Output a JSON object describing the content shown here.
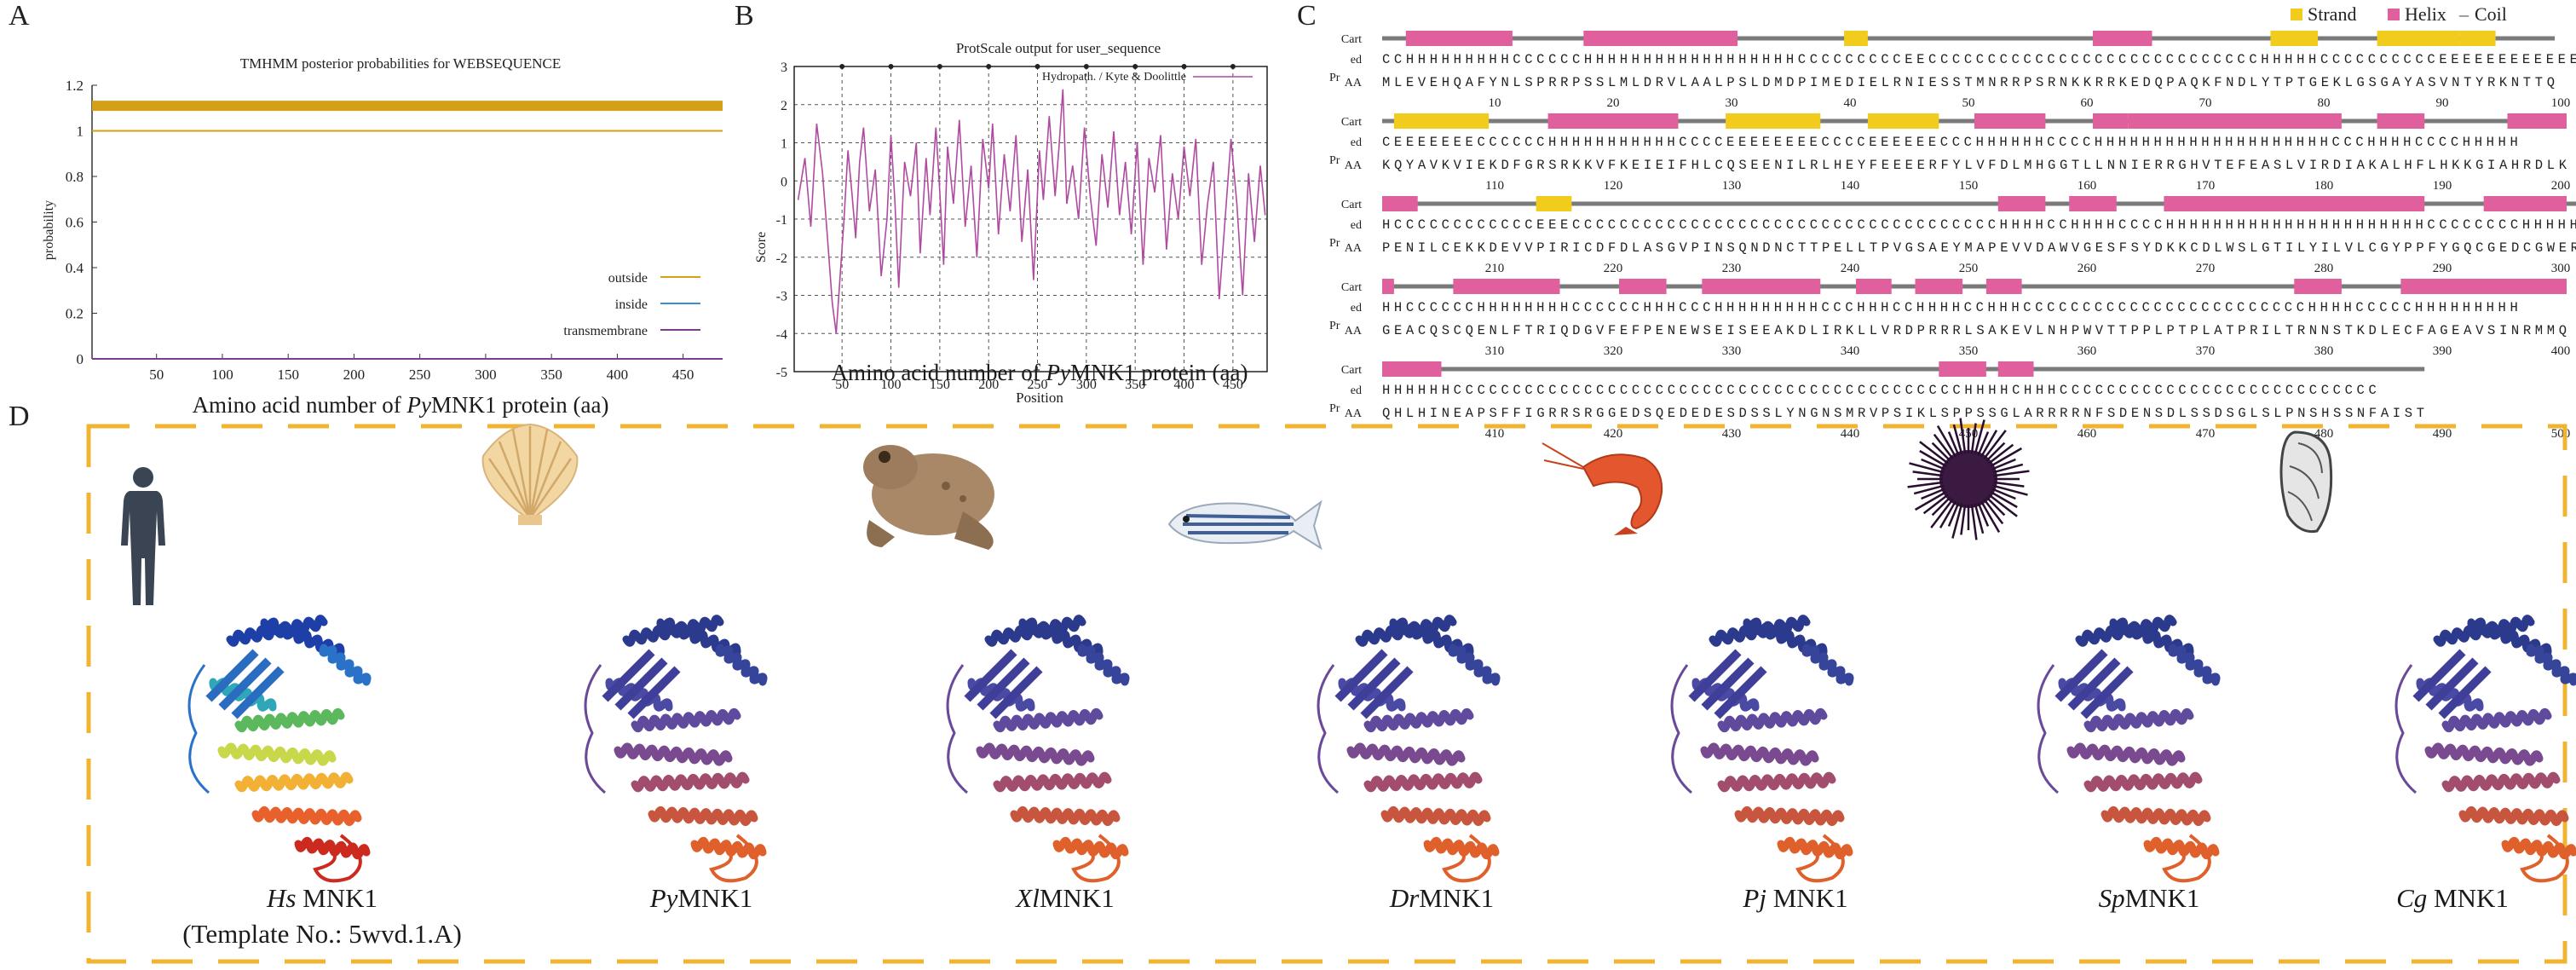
{
  "panels": {
    "a": "A",
    "b": "B",
    "c": "C",
    "d": "D"
  },
  "colors": {
    "outside": "#d4a017",
    "inside": "#3a8fd1",
    "transmembrane": "#7a3c8c",
    "hydro": "#b04aa0",
    "strand": "#f2cc1c",
    "helix": "#e0609e",
    "coil": "#7a7a7a",
    "frame": "#f0b431"
  },
  "chart_data": [
    {
      "type": "line",
      "id": "A",
      "title": "TMHMM posterior probabilities for WEBSEQUENCE",
      "xlabel": "Amino acid number of PyMNK1 protein (aa)",
      "ylabel": "probability",
      "xlim": [
        1,
        480
      ],
      "ylim": [
        0,
        1.2
      ],
      "xticks": [
        50,
        100,
        150,
        200,
        250,
        300,
        350,
        400,
        450
      ],
      "yticks": [
        "0",
        "0.2",
        "0.4",
        "0.6",
        "0.8",
        "1",
        "1.2"
      ],
      "legend_position": "bottom-right",
      "series": [
        {
          "name": "outside",
          "values": [
            1.0,
            1.0
          ]
        },
        {
          "name": "inside",
          "values": [
            0.0,
            0.0
          ]
        },
        {
          "name": "transmembrane",
          "values": [
            0.0,
            0.0
          ]
        }
      ],
      "band": {
        "name": "outside-bar",
        "value": 1.11
      }
    },
    {
      "type": "line",
      "id": "B",
      "title": "ProtScale output for user_sequence",
      "xlabel": "Position",
      "ylabel": "Score",
      "caption": "Amino acid number of PyMNK1 protein (aa)",
      "xlim": [
        1,
        485
      ],
      "ylim": [
        -5,
        3
      ],
      "xticks": [
        50,
        100,
        150,
        200,
        250,
        300,
        350,
        400,
        450
      ],
      "yticks": [
        -5,
        -4,
        -3,
        -2,
        -1,
        0,
        1,
        2,
        3
      ],
      "legend": "Hydropath. / Kyte & Doolittle",
      "legend_position": "top-right",
      "series": [
        {
          "name": "Hydropath. / Kyte & Doolittle",
          "x": [
            5,
            12,
            18,
            24,
            30,
            36,
            40,
            44,
            48,
            52,
            56,
            60,
            64,
            68,
            72,
            78,
            84,
            90,
            96,
            100,
            104,
            108,
            114,
            120,
            126,
            130,
            136,
            140,
            146,
            150,
            154,
            158,
            164,
            170,
            176,
            182,
            188,
            194,
            200,
            204,
            210,
            216,
            222,
            228,
            234,
            240,
            246,
            252,
            256,
            262,
            268,
            272,
            276,
            280,
            286,
            292,
            298,
            304,
            310,
            316,
            322,
            328,
            334,
            340,
            346,
            352,
            358,
            364,
            370,
            376,
            382,
            388,
            394,
            400,
            406,
            412,
            418,
            424,
            430,
            436,
            442,
            448,
            454,
            460,
            466,
            472,
            478,
            483
          ],
          "values": [
            -0.5,
            0.6,
            -1.2,
            1.5,
            0.2,
            -1.8,
            -3.2,
            -4.0,
            -2.5,
            -1.0,
            0.8,
            -0.3,
            -1.5,
            0.5,
            1.4,
            -0.8,
            0.3,
            -2.5,
            -1.0,
            1.2,
            -0.5,
            -2.8,
            0.5,
            -0.4,
            1.0,
            -1.9,
            0.6,
            -0.9,
            1.4,
            -0.3,
            -2.2,
            0.9,
            -0.6,
            1.6,
            -1.2,
            0.4,
            -2.0,
            1.1,
            -0.2,
            1.5,
            -1.4,
            0.7,
            -0.8,
            1.2,
            -1.6,
            0.3,
            -2.6,
            0.8,
            -0.5,
            1.7,
            -0.4,
            0.9,
            2.4,
            -0.6,
            0.4,
            -1.0,
            1.4,
            -0.4,
            -1.7,
            0.7,
            -0.7,
            1.3,
            -0.9,
            0.5,
            -1.4,
            1.0,
            -2.2,
            0.6,
            -0.3,
            1.2,
            -1.8,
            0.2,
            -1.0,
            0.9,
            -0.4,
            1.1,
            -2.2,
            -0.6,
            0.5,
            -3.1,
            -1.0,
            1.1,
            -0.6,
            -3.0,
            0.2,
            -1.6,
            0.4,
            -0.9
          ]
        }
      ]
    }
  ],
  "secondary": {
    "legend": {
      "strand": "Strand",
      "helix": "Helix",
      "coil": "Coil",
      "coil_mark": "–"
    },
    "row_label_cart": "Cart",
    "row_label_ed": "ed",
    "row_label_pr": "Pr",
    "row_label_aa": "AA",
    "blocks": [
      {
        "ss": "CCHHHHHHHHHCCCCCCHHHHHHHHHHHHHHHHHHCCCCCCCCCEECCCCCCCCCCCCCCCCCCCCCCCCCCCCHHHHHCCCCCCCCCCEEEEEEEEEEEEEC",
        "aa": "MLEVEHQAFYNLSPRRPSSLMLDRVLAALPSLDMDPIMEDIELRNIESSTMNRRPSRNKKRRKEDQPAQKFNDLYTPTGEKLGSGAYASVNTYRKNTTQ",
        "nums": [
          "10",
          "20",
          "30",
          "40",
          "50",
          "60",
          "70",
          "80",
          "90",
          "100"
        ],
        "segments": [
          {
            "type": "helix",
            "start": 3,
            "end": 11
          },
          {
            "type": "helix",
            "start": 18,
            "end": 30
          },
          {
            "type": "strand",
            "start": 40,
            "end": 41
          },
          {
            "type": "helix",
            "start": 61,
            "end": 65
          },
          {
            "type": "strand",
            "start": 76,
            "end": 79
          },
          {
            "type": "strand",
            "start": 85,
            "end": 91
          },
          {
            "type": "strand",
            "start": 92,
            "end": 94
          }
        ]
      },
      {
        "ss": "CEEEEEEECCCCCCHHHHHHHHHHHCCCCEEEEEEEECCCCEEEEEECCCHHHHHHCCCCHHHHHHHHHHHHHHHHHHHHCCCHHHHCCCCHHHHH",
        "aa": "KQYAVKVIEKDFGRSRKKVFKEIEIFHLCQSEENILRLHEYFEEEERFYLVFDLMHGGTLLNNIERRGHVTEFEASLVIRDIAKALHFLHKKGIAHRDLK",
        "nums": [
          "110",
          "120",
          "130",
          "140",
          "150",
          "160",
          "170",
          "180",
          "190",
          "200"
        ],
        "segments": [
          {
            "type": "strand",
            "start": 2,
            "end": 9
          },
          {
            "type": "helix",
            "start": 15,
            "end": 25
          },
          {
            "type": "strand",
            "start": 30,
            "end": 37
          },
          {
            "type": "strand",
            "start": 42,
            "end": 47
          },
          {
            "type": "helix",
            "start": 51,
            "end": 56
          },
          {
            "type": "helix",
            "start": 61,
            "end": 63
          },
          {
            "type": "helix",
            "start": 64,
            "end": 81
          },
          {
            "type": "helix",
            "start": 85,
            "end": 88
          },
          {
            "type": "helix",
            "start": 96,
            "end": 100
          }
        ]
      },
      {
        "ss": "HCCCCCCCCCCCCEEECCCCCCCCCCCCCCCCCCCCCCCCCCCCCCCCCCCCHHHHCCHHHHCCCCHHHHHHHHHHHHHHHHHHHHHHCCCCCCCCHHHHHHH",
        "aa": "PENILCEKKDEVVPIRICDFDLASGVPINSQNDNCTTPELLTPVGSAEYMAPEVVDAWVGESFSYDKKCDLWSLGTILYILVLCGYPPFYGQCGEDCGWER",
        "nums": [
          "210",
          "220",
          "230",
          "240",
          "250",
          "260",
          "270",
          "280",
          "290",
          "300"
        ],
        "segments": [
          {
            "type": "helix",
            "start": 1,
            "end": 3
          },
          {
            "type": "strand",
            "start": 14,
            "end": 16
          },
          {
            "type": "helix",
            "start": 53,
            "end": 56
          },
          {
            "type": "helix",
            "start": 59,
            "end": 62
          },
          {
            "type": "helix",
            "start": 67,
            "end": 88
          },
          {
            "type": "helix",
            "start": 94,
            "end": 100
          }
        ]
      },
      {
        "ss": "HHCCCCCCHHHHHHHHCCCCCCHHHCCCHHHHHHHHHCCCHHHCCHHHHCCHHHCCCCCCCCCCCCCCCCCCCCCCCCHHHHCCCCCHHHHHHHHH",
        "aa": "GEACQSCQENLFTRIQDGVFEFPENEWSEISEEAKDLIRKLLVRDPRRRLSAKEVLNHPWVTTPPLPTPLATPRILTRNNSTKDLECFAGEAVSINRMMQ",
        "nums": [
          "310",
          "320",
          "330",
          "340",
          "350",
          "360",
          "370",
          "380",
          "390",
          "400"
        ],
        "segments": [
          {
            "type": "helix",
            "start": 1,
            "end": 1
          },
          {
            "type": "helix",
            "start": 7,
            "end": 15
          },
          {
            "type": "helix",
            "start": 21,
            "end": 24
          },
          {
            "type": "helix",
            "start": 28,
            "end": 37
          },
          {
            "type": "helix",
            "start": 41,
            "end": 43
          },
          {
            "type": "helix",
            "start": 46,
            "end": 49
          },
          {
            "type": "helix",
            "start": 52,
            "end": 54
          },
          {
            "type": "helix",
            "start": 78,
            "end": 81
          },
          {
            "type": "helix",
            "start": 87,
            "end": 100
          }
        ]
      },
      {
        "ss": "HHHHHHCCCCCCCCCCCCCCCCCCCCCCCCCCCCCCCCCCCCCCCCCCCHHHHCHHHCCCCCCCCCCCCCCCCCCCCCCCCCCC",
        "aa": "QHLHINEAPSFFIGRRSRGGEDSQEDEDESDSSLYNGNSMRVPSIKLSPPSSGLARRRRNFSDENSDLSSDSGLSLPNSHSSNFAIST",
        "nums": [
          "410",
          "420",
          "430",
          "440",
          "450",
          "460",
          "470",
          "480",
          "490",
          "500"
        ],
        "segments": [
          {
            "type": "helix",
            "start": 1,
            "end": 5
          },
          {
            "type": "helix",
            "start": 48,
            "end": 51
          },
          {
            "type": "helix",
            "start": 53,
            "end": 55
          }
        ]
      }
    ]
  },
  "species": [
    {
      "italic": "Hs",
      "name": " MNK1",
      "sub": "(Template No.: 5wvd.1.A)"
    },
    {
      "italic": "Py",
      "name": "MNK1",
      "sub": ""
    },
    {
      "italic": "Xl",
      "name": "MNK1",
      "sub": ""
    },
    {
      "italic": "Dr",
      "name": "MNK1",
      "sub": ""
    },
    {
      "italic": "Pj",
      "name": " MNK1",
      "sub": ""
    },
    {
      "italic": "Sp",
      "name": "MNK1",
      "sub": ""
    },
    {
      "italic": "Cg",
      "name": " MNK1",
      "sub": ""
    }
  ],
  "captions": {
    "a_pre": "Amino acid number of ",
    "a_italic": "Py",
    "a_post": "MNK1 protein (aa)",
    "b_pre": "Amino acid number of ",
    "b_italic": "Py",
    "b_post": "MNK1 protein (aa)"
  }
}
